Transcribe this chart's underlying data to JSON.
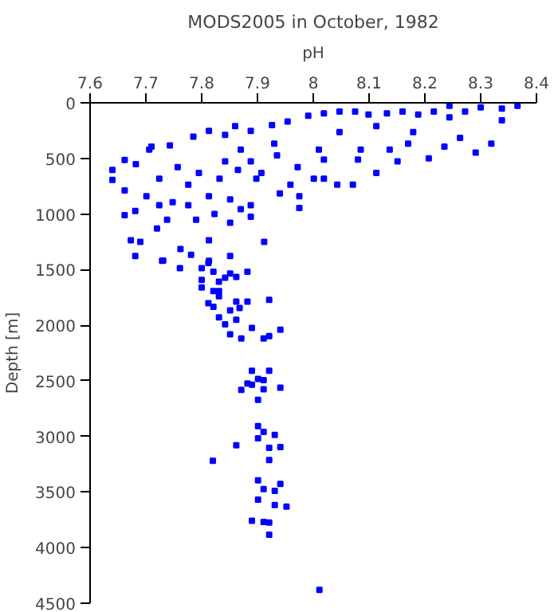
{
  "chart_data": {
    "type": "scatter",
    "title": "MODS2005 in October, 1982",
    "xlabel": "pH",
    "ylabel": "Depth [m]",
    "xlim": [
      7.6,
      8.4
    ],
    "xticks": [
      7.6,
      7.7,
      7.8,
      7.9,
      8,
      8.1,
      8.2,
      8.3,
      8.4
    ],
    "ylim": [
      4500,
      0
    ],
    "yticks": [
      0,
      500,
      1000,
      1500,
      2000,
      2500,
      3000,
      3500,
      4000,
      4500
    ],
    "grid": false,
    "marker": "square",
    "series": [
      {
        "color": "#0000ff",
        "x": [
          7.82,
          7.901,
          7.941,
          7.911,
          7.931,
          7.901,
          7.931,
          7.952,
          7.89,
          7.911,
          7.921,
          7.921,
          8.011,
          7.731,
          7.761,
          7.8,
          7.812,
          7.821,
          7.851,
          7.882,
          7.842,
          7.862,
          7.8,
          7.831,
          7.8,
          7.821,
          7.831,
          7.831,
          7.812,
          7.821,
          7.862,
          7.882,
          7.921,
          7.851,
          7.868,
          7.831,
          7.862,
          7.842,
          7.89,
          7.851,
          7.871,
          7.911,
          7.921,
          7.941,
          7.89,
          7.921,
          7.901,
          7.911,
          7.882,
          7.89,
          7.911,
          7.941,
          7.871,
          7.901,
          7.901,
          7.911,
          7.931,
          7.901,
          7.862,
          7.921,
          7.941,
          7.921,
          8.366,
          8.338,
          8.3,
          8.272,
          8.244,
          8.216,
          8.188,
          8.16,
          8.132,
          8.099,
          8.075,
          8.047,
          8.019,
          7.991,
          7.954,
          7.926,
          7.888,
          7.86,
          7.842,
          7.813,
          7.785,
          7.743,
          7.71,
          8.338,
          8.319,
          8.291,
          8.263,
          8.235,
          8.207,
          8.179,
          8.151,
          8.137,
          8.113,
          8.085,
          8.08,
          8.047,
          8.019,
          8.01,
          8.001,
          8.019,
          8.071,
          8.043,
          7.972,
          7.975,
          7.975,
          7.959,
          7.935,
          7.93,
          7.94,
          7.907,
          7.898,
          7.888,
          7.888,
          7.888,
          7.87,
          7.865,
          7.87,
          7.851,
          7.851,
          7.842,
          7.832,
          7.823,
          7.813,
          7.813,
          7.795,
          7.79,
          7.776,
          7.776,
          7.781,
          7.762,
          7.757,
          7.748,
          7.738,
          7.724,
          7.724,
          7.72,
          7.706,
          7.701,
          7.682,
          7.681,
          7.673,
          7.681,
          7.662,
          7.662,
          7.64,
          7.64,
          7.662,
          7.729,
          7.912,
          7.851,
          7.813,
          7.69,
          8.244,
          8.113,
          8.17
        ],
        "values": [
          3220,
          3395,
          3427,
          3474,
          3490,
          3569,
          3616,
          3632,
          3758,
          3770,
          3774,
          3884,
          4380,
          1419,
          1487,
          1487,
          1440,
          1519,
          1535,
          1519,
          1572,
          1566,
          1593,
          1609,
          1661,
          1692,
          1692,
          1740,
          1803,
          1834,
          1787,
          1787,
          1771,
          1866,
          1845,
          1929,
          1951,
          1992,
          2024,
          2082,
          2119,
          2119,
          2098,
          2040,
          2409,
          2409,
          2482,
          2493,
          2524,
          2535,
          2576,
          2561,
          2582,
          2671,
          2907,
          2960,
          2986,
          3017,
          3080,
          3102,
          3096,
          3212,
          26,
          52,
          42,
          79,
          26,
          79,
          105,
          79,
          95,
          105,
          79,
          79,
          95,
          116,
          168,
          200,
          252,
          210,
          289,
          252,
          305,
          384,
          394,
          158,
          368,
          447,
          315,
          394,
          500,
          263,
          526,
          421,
          631,
          421,
          510,
          263,
          510,
          421,
          683,
          683,
          736,
          736,
          578,
          841,
          946,
          736,
          473,
          368,
          815,
          631,
          683,
          526,
          920,
          1025,
          421,
          604,
          957,
          868,
          1078,
          526,
          683,
          999,
          841,
          1236,
          631,
          1052,
          736,
          920,
          1367,
          1315,
          578,
          894,
          1052,
          683,
          920,
          1131,
          421,
          841,
          552,
          973,
          1236,
          1378,
          515,
          789,
          604,
          694,
          1010,
          1420,
          1251,
          1378,
          1420,
          1251,
          131,
          210,
          368
        ]
      }
    ]
  }
}
